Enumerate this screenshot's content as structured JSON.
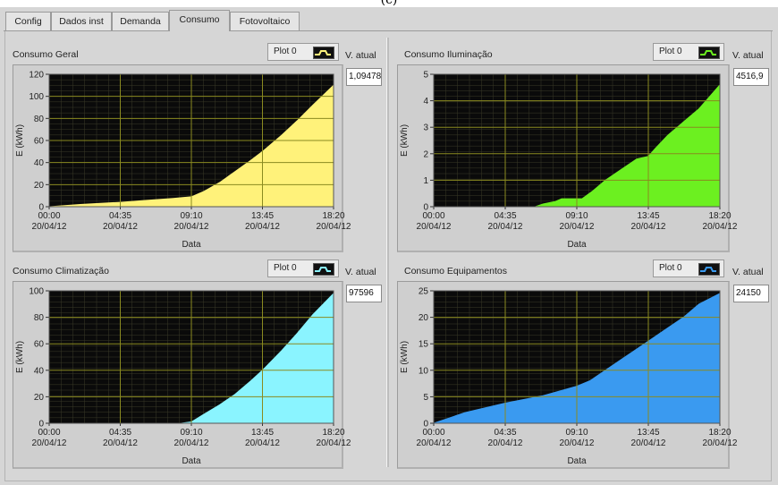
{
  "caption": "(c)",
  "tabs": [
    {
      "label": "Config",
      "active": false
    },
    {
      "label": "Dados inst",
      "active": false
    },
    {
      "label": "Demanda",
      "active": false
    },
    {
      "label": "Consumo",
      "active": true
    },
    {
      "label": "Fotovoltaico",
      "active": false
    }
  ],
  "panels": [
    {
      "title": "Consumo Geral",
      "plot_label": "Plot 0",
      "vatual_label": "V. atual",
      "vatual_value": "1,09478"
    },
    {
      "title": "Consumo Iluminação",
      "plot_label": "Plot 0",
      "vatual_label": "V. atual",
      "vatual_value": "4516,9"
    },
    {
      "title": "Consumo Climatização",
      "plot_label": "Plot 0",
      "vatual_label": "V. atual",
      "vatual_value": "97596"
    },
    {
      "title": "Consumo Equipamentos",
      "plot_label": "Plot 0",
      "vatual_label": "V. atual",
      "vatual_value": "24150"
    }
  ],
  "chart_data": [
    {
      "type": "area",
      "title": "Consumo Geral",
      "xlabel": "Data",
      "ylabel": "E (kWh)",
      "x_ticks": [
        "00:00\n20/04/12",
        "04:35\n20/04/12",
        "09:10\n20/04/12",
        "13:45\n20/04/12",
        "18:20\n20/04/12"
      ],
      "y_ticks": [
        0,
        20,
        40,
        60,
        80,
        100,
        120
      ],
      "ylim": [
        0,
        120
      ],
      "xlim_hours": [
        0,
        18.333
      ],
      "color": "#fff27a",
      "series": [
        {
          "x": [
            0,
            2,
            4.583,
            6,
            8,
            9.167,
            10,
            11,
            12,
            13,
            13.75,
            15,
            16,
            17,
            18.333
          ],
          "y": [
            0,
            2,
            4,
            5.5,
            7.5,
            9,
            14,
            22,
            32,
            42,
            50,
            65,
            78,
            92,
            110
          ]
        }
      ]
    },
    {
      "type": "area",
      "title": "Consumo Iluminação",
      "xlabel": "Data",
      "ylabel": "E (kWh)",
      "x_ticks": [
        "00:00\n20/04/12",
        "04:35\n20/04/12",
        "09:10\n20/04/12",
        "13:45\n20/04/12",
        "18:20\n20/04/12"
      ],
      "y_ticks": [
        0,
        1,
        2,
        3,
        4,
        5
      ],
      "ylim": [
        0,
        5
      ],
      "xlim_hours": [
        0,
        18.333
      ],
      "color": "#6cf020",
      "series": [
        {
          "x": [
            0,
            6.5,
            7,
            7.8,
            8.2,
            9.5,
            10.2,
            11,
            12,
            13,
            13.75,
            14.2,
            15,
            16,
            17,
            18.333
          ],
          "y": [
            0,
            0,
            0.1,
            0.2,
            0.3,
            0.3,
            0.6,
            1.0,
            1.4,
            1.8,
            1.9,
            2.2,
            2.7,
            3.2,
            3.7,
            4.6
          ]
        }
      ]
    },
    {
      "type": "area",
      "title": "Consumo Climatização",
      "xlabel": "Data",
      "ylabel": "E (kWh)",
      "x_ticks": [
        "00:00\n20/04/12",
        "04:35\n20/04/12",
        "09:10\n20/04/12",
        "13:45\n20/04/12",
        "18:20\n20/04/12"
      ],
      "y_ticks": [
        0,
        20,
        40,
        60,
        80,
        100
      ],
      "ylim": [
        0,
        100
      ],
      "xlim_hours": [
        0,
        18.333
      ],
      "color": "#8af4ff",
      "series": [
        {
          "x": [
            0,
            8.5,
            9.167,
            10,
            11,
            12,
            13,
            13.75,
            15,
            16,
            17,
            18.333
          ],
          "y": [
            0,
            0,
            1,
            7,
            14,
            22,
            32,
            40,
            55,
            68,
            82,
            98
          ]
        }
      ]
    },
    {
      "type": "area",
      "title": "Consumo Equipamentos",
      "xlabel": "Data",
      "ylabel": "E (kWh)",
      "x_ticks": [
        "00:00\n20/04/12",
        "04:35\n20/04/12",
        "09:10\n20/04/12",
        "13:45\n20/04/12",
        "18:20\n20/04/12"
      ],
      "y_ticks": [
        0,
        5,
        10,
        15,
        20,
        25
      ],
      "ylim": [
        0,
        25
      ],
      "xlim_hours": [
        0,
        18.333
      ],
      "color": "#3a9af0",
      "series": [
        {
          "x": [
            0,
            2,
            4.583,
            7,
            9.167,
            10,
            11,
            12,
            13,
            13.75,
            15,
            16,
            17,
            18.333
          ],
          "y": [
            0,
            2,
            3.8,
            5.2,
            7,
            8,
            10,
            12,
            14,
            15.5,
            18,
            20,
            22.5,
            24.5
          ]
        }
      ]
    }
  ]
}
